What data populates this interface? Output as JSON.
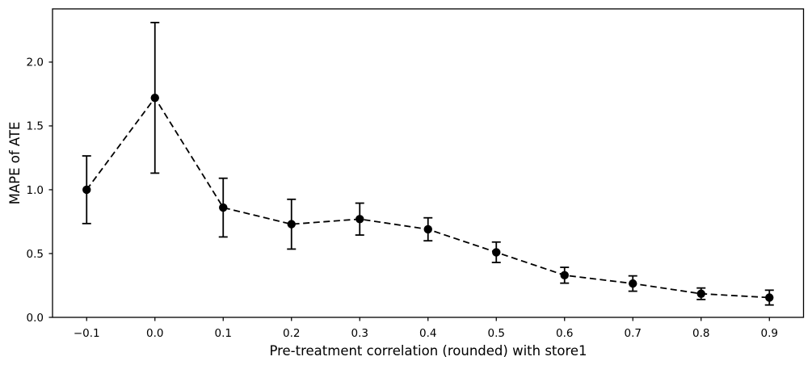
{
  "figure": {
    "background": "#ffffff",
    "series_color": "#000000",
    "text_color": "#000000"
  },
  "chart_data": {
    "type": "line",
    "title": "",
    "xlabel": "Pre-treatment correlation (rounded) with store1",
    "ylabel": "MAPE of ATE",
    "x": [
      -0.1,
      0.0,
      0.1,
      0.2,
      0.3,
      0.4,
      0.5,
      0.6,
      0.7,
      0.8,
      0.9
    ],
    "y": [
      1.0,
      1.72,
      0.86,
      0.73,
      0.77,
      0.69,
      0.51,
      0.33,
      0.265,
      0.185,
      0.155
    ],
    "yerr": [
      0.265,
      0.59,
      0.23,
      0.195,
      0.125,
      0.09,
      0.08,
      0.062,
      0.06,
      0.045,
      0.058
    ],
    "xticks": [
      -0.1,
      0.0,
      0.1,
      0.2,
      0.3,
      0.4,
      0.5,
      0.6,
      0.7,
      0.8,
      0.9
    ],
    "xtick_labels": [
      "−0.1",
      "0.0",
      "0.1",
      "0.2",
      "0.3",
      "0.4",
      "0.5",
      "0.6",
      "0.7",
      "0.8",
      "0.9"
    ],
    "yticks": [
      0.0,
      0.5,
      1.0,
      1.5,
      2.0
    ],
    "ytick_labels": [
      "0.0",
      "0.5",
      "1.0",
      "1.5",
      "2.0"
    ],
    "xlim": [
      -0.15,
      0.95
    ],
    "ylim": [
      0,
      2.417
    ],
    "line_style": "dashed",
    "marker": "circle",
    "error_bars": "vertical-with-caps",
    "grid": false,
    "legend": null
  }
}
